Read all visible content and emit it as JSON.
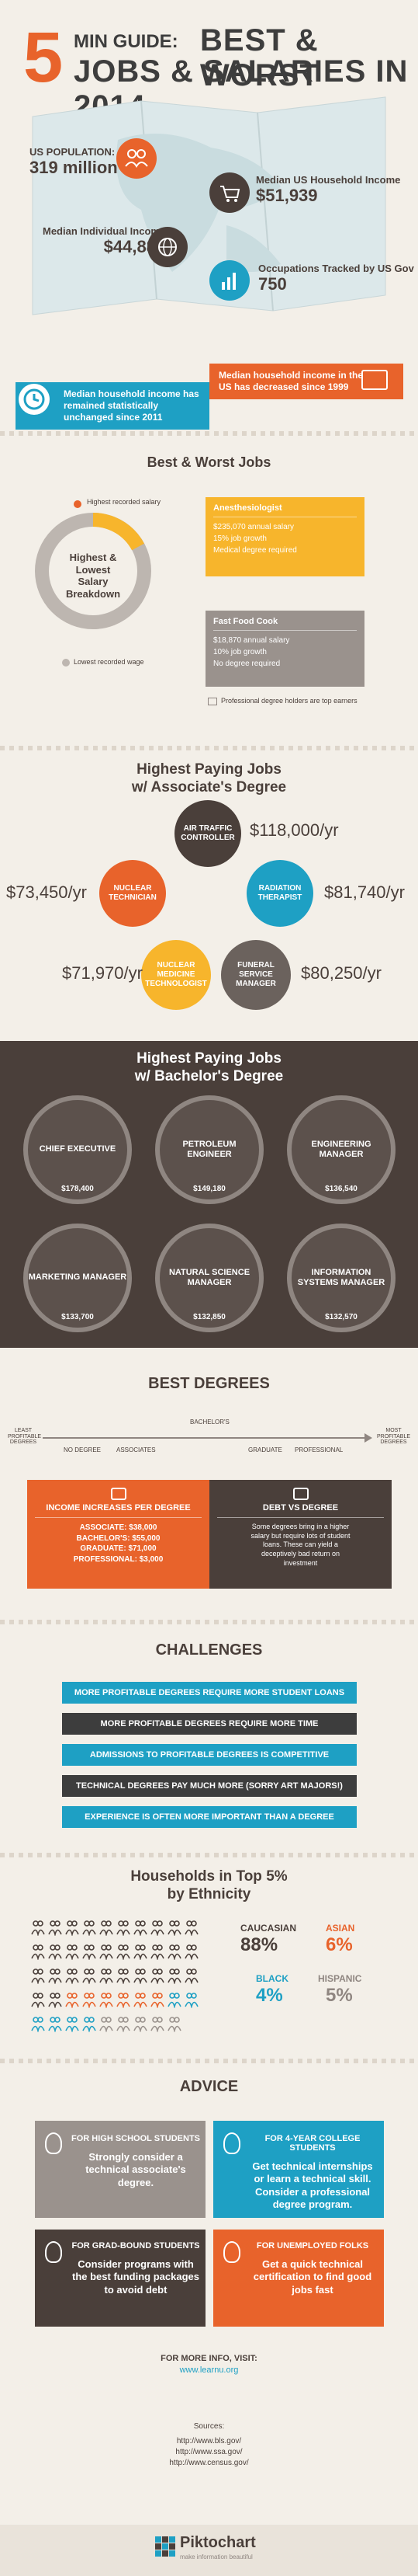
{
  "header": {
    "number": "5",
    "min_guide": "MIN GUIDE:",
    "best_worst": "BEST & WORST",
    "jobs_salaries": "JOBS & SALARIES IN 2014"
  },
  "stats": {
    "population_label": "US POPULATION:",
    "population_value": "319 million",
    "household_label": "Median US Household Income",
    "household_value": "$51,939",
    "individual_label": "Median Individual Income",
    "individual_value": "$44,888",
    "occupations_label": "Occupations Tracked by US Gov",
    "occupations_value": "750"
  },
  "ribbons": {
    "decreased": "Median household income in the US has decreased since 1999",
    "stagnant": "Median household income has remained statistically unchanged since 2011"
  },
  "best_worst": {
    "title": "Best & Worst Jobs",
    "highest_label": "Highest recorded salary",
    "lowest_label": "Lowest recorded wage",
    "donut_title": "Highest & Lowest Salary Breakdown",
    "anesth_title": "Anesthesiologist",
    "anesth_items": [
      "$235,070 annual salary",
      "15% job growth",
      "Medical degree required"
    ],
    "fastfood_title": "Fast Food Cook",
    "fastfood_items": [
      "$18,870 annual salary",
      "10% job growth",
      "No degree required"
    ],
    "note": "Professional degree holders are top earners"
  },
  "associates": {
    "title_line1": "Highest Paying Jobs",
    "title_line2": "w/ Associate's Degree",
    "jobs": [
      {
        "name": "AIR TRAFFIC CONTROLLER",
        "salary": "$118,000/yr"
      },
      {
        "name": "NUCLEAR TECHNICIAN",
        "salary": "$73,450/yr"
      },
      {
        "name": "RADIATION THERAPIST",
        "salary": "$81,740/yr"
      },
      {
        "name": "NUCLEAR MEDICINE TECHNOLOGIST",
        "salary": "$71,970/yr"
      },
      {
        "name": "FUNERAL SERVICE MANAGER",
        "salary": "$80,250/yr"
      }
    ]
  },
  "bachelors": {
    "title_line1": "Highest Paying Jobs",
    "title_line2": "w/ Bachelor's Degree",
    "jobs": [
      {
        "name": "CHIEF EXECUTIVE",
        "salary": "$178,400"
      },
      {
        "name": "PETROLEUM ENGINEER",
        "salary": "$149,180"
      },
      {
        "name": "ENGINEERING MANAGER",
        "salary": "$136,540"
      },
      {
        "name": "MARKETING MANAGER",
        "salary": "$133,700"
      },
      {
        "name": "NATURAL SCIENCE MANAGER",
        "salary": "$132,850"
      },
      {
        "name": "INFORMATION SYSTEMS MANAGER",
        "salary": "$132,570"
      }
    ]
  },
  "degrees": {
    "title": "BEST DEGREES",
    "least": "LEAST PROFITABLE DEGREES",
    "most": "MOST PROFITABLE DEGREES",
    "scale": [
      "NO DEGREE",
      "ASSOCIATES",
      "BACHELOR'S",
      "GRADUATE",
      "PROFESSIONAL"
    ],
    "increase_title": "INCOME INCREASES PER DEGREE",
    "increase_items": [
      "ASSOCIATE: $38,000",
      "BACHELOR'S: $55,000",
      "GRADUATE: $71,000",
      "PROFESSIONAL: $3,000"
    ],
    "debt_title": "DEBT VS DEGREE",
    "debt_text": "Some degrees bring in a higher salary but require lots of student loans. These can yield a deceptively bad return on investment"
  },
  "challenges": {
    "title": "CHALLENGES",
    "items": [
      "MORE PROFITABLE DEGREES REQUIRE MORE STUDENT LOANS",
      "MORE PROFITABLE DEGREES REQUIRE MORE TIME",
      "ADMISSIONS TO PROFITABLE DEGREES IS COMPETITIVE",
      "TECHNICAL DEGREES PAY MUCH MORE (SORRY ART MAJORS!)",
      "EXPERIENCE IS OFTEN MORE IMPORTANT THAN A DEGREE"
    ]
  },
  "ethnicity": {
    "title_line1": "Households in Top 5%",
    "title_line2": "by Ethnicity",
    "groups": [
      {
        "name": "CAUCASIAN",
        "value": "88%"
      },
      {
        "name": "ASIAN",
        "value": "6%"
      },
      {
        "name": "BLACK",
        "value": "4%"
      },
      {
        "name": "HISPANIC",
        "value": "5%"
      }
    ]
  },
  "advice": {
    "title": "ADVICE",
    "items": [
      {
        "head": "FOR HIGH SCHOOL STUDENTS",
        "body": "Strongly consider a technical associate's degree."
      },
      {
        "head": "FOR 4-YEAR COLLEGE STUDENTS",
        "body": "Get technical internships or learn a technical skill. Consider a professional degree program."
      },
      {
        "head": "FOR GRAD-BOUND STUDENTS",
        "body": "Consider programs with the best funding packages to avoid debt"
      },
      {
        "head": "FOR UNEMPLOYED FOLKS",
        "body": "Get a quick technical certification to find good jobs fast"
      }
    ]
  },
  "footer": {
    "more_info": "FOR MORE INFO, VISIT:",
    "more_url": "www.learnu.org",
    "sources_label": "Sources:",
    "sources": [
      "http://www.bls.gov/",
      "http://www.ssa.gov/",
      "http://www.census.gov/"
    ],
    "brand": "Piktochart",
    "tagline": "make information beautiful"
  },
  "colors": {
    "orange": "#e8632b",
    "dark": "#4a3f3a",
    "blue": "#1ea0c4",
    "yellow": "#f7b52c",
    "grey": "#8f8681",
    "cream": "#f3efe8"
  }
}
